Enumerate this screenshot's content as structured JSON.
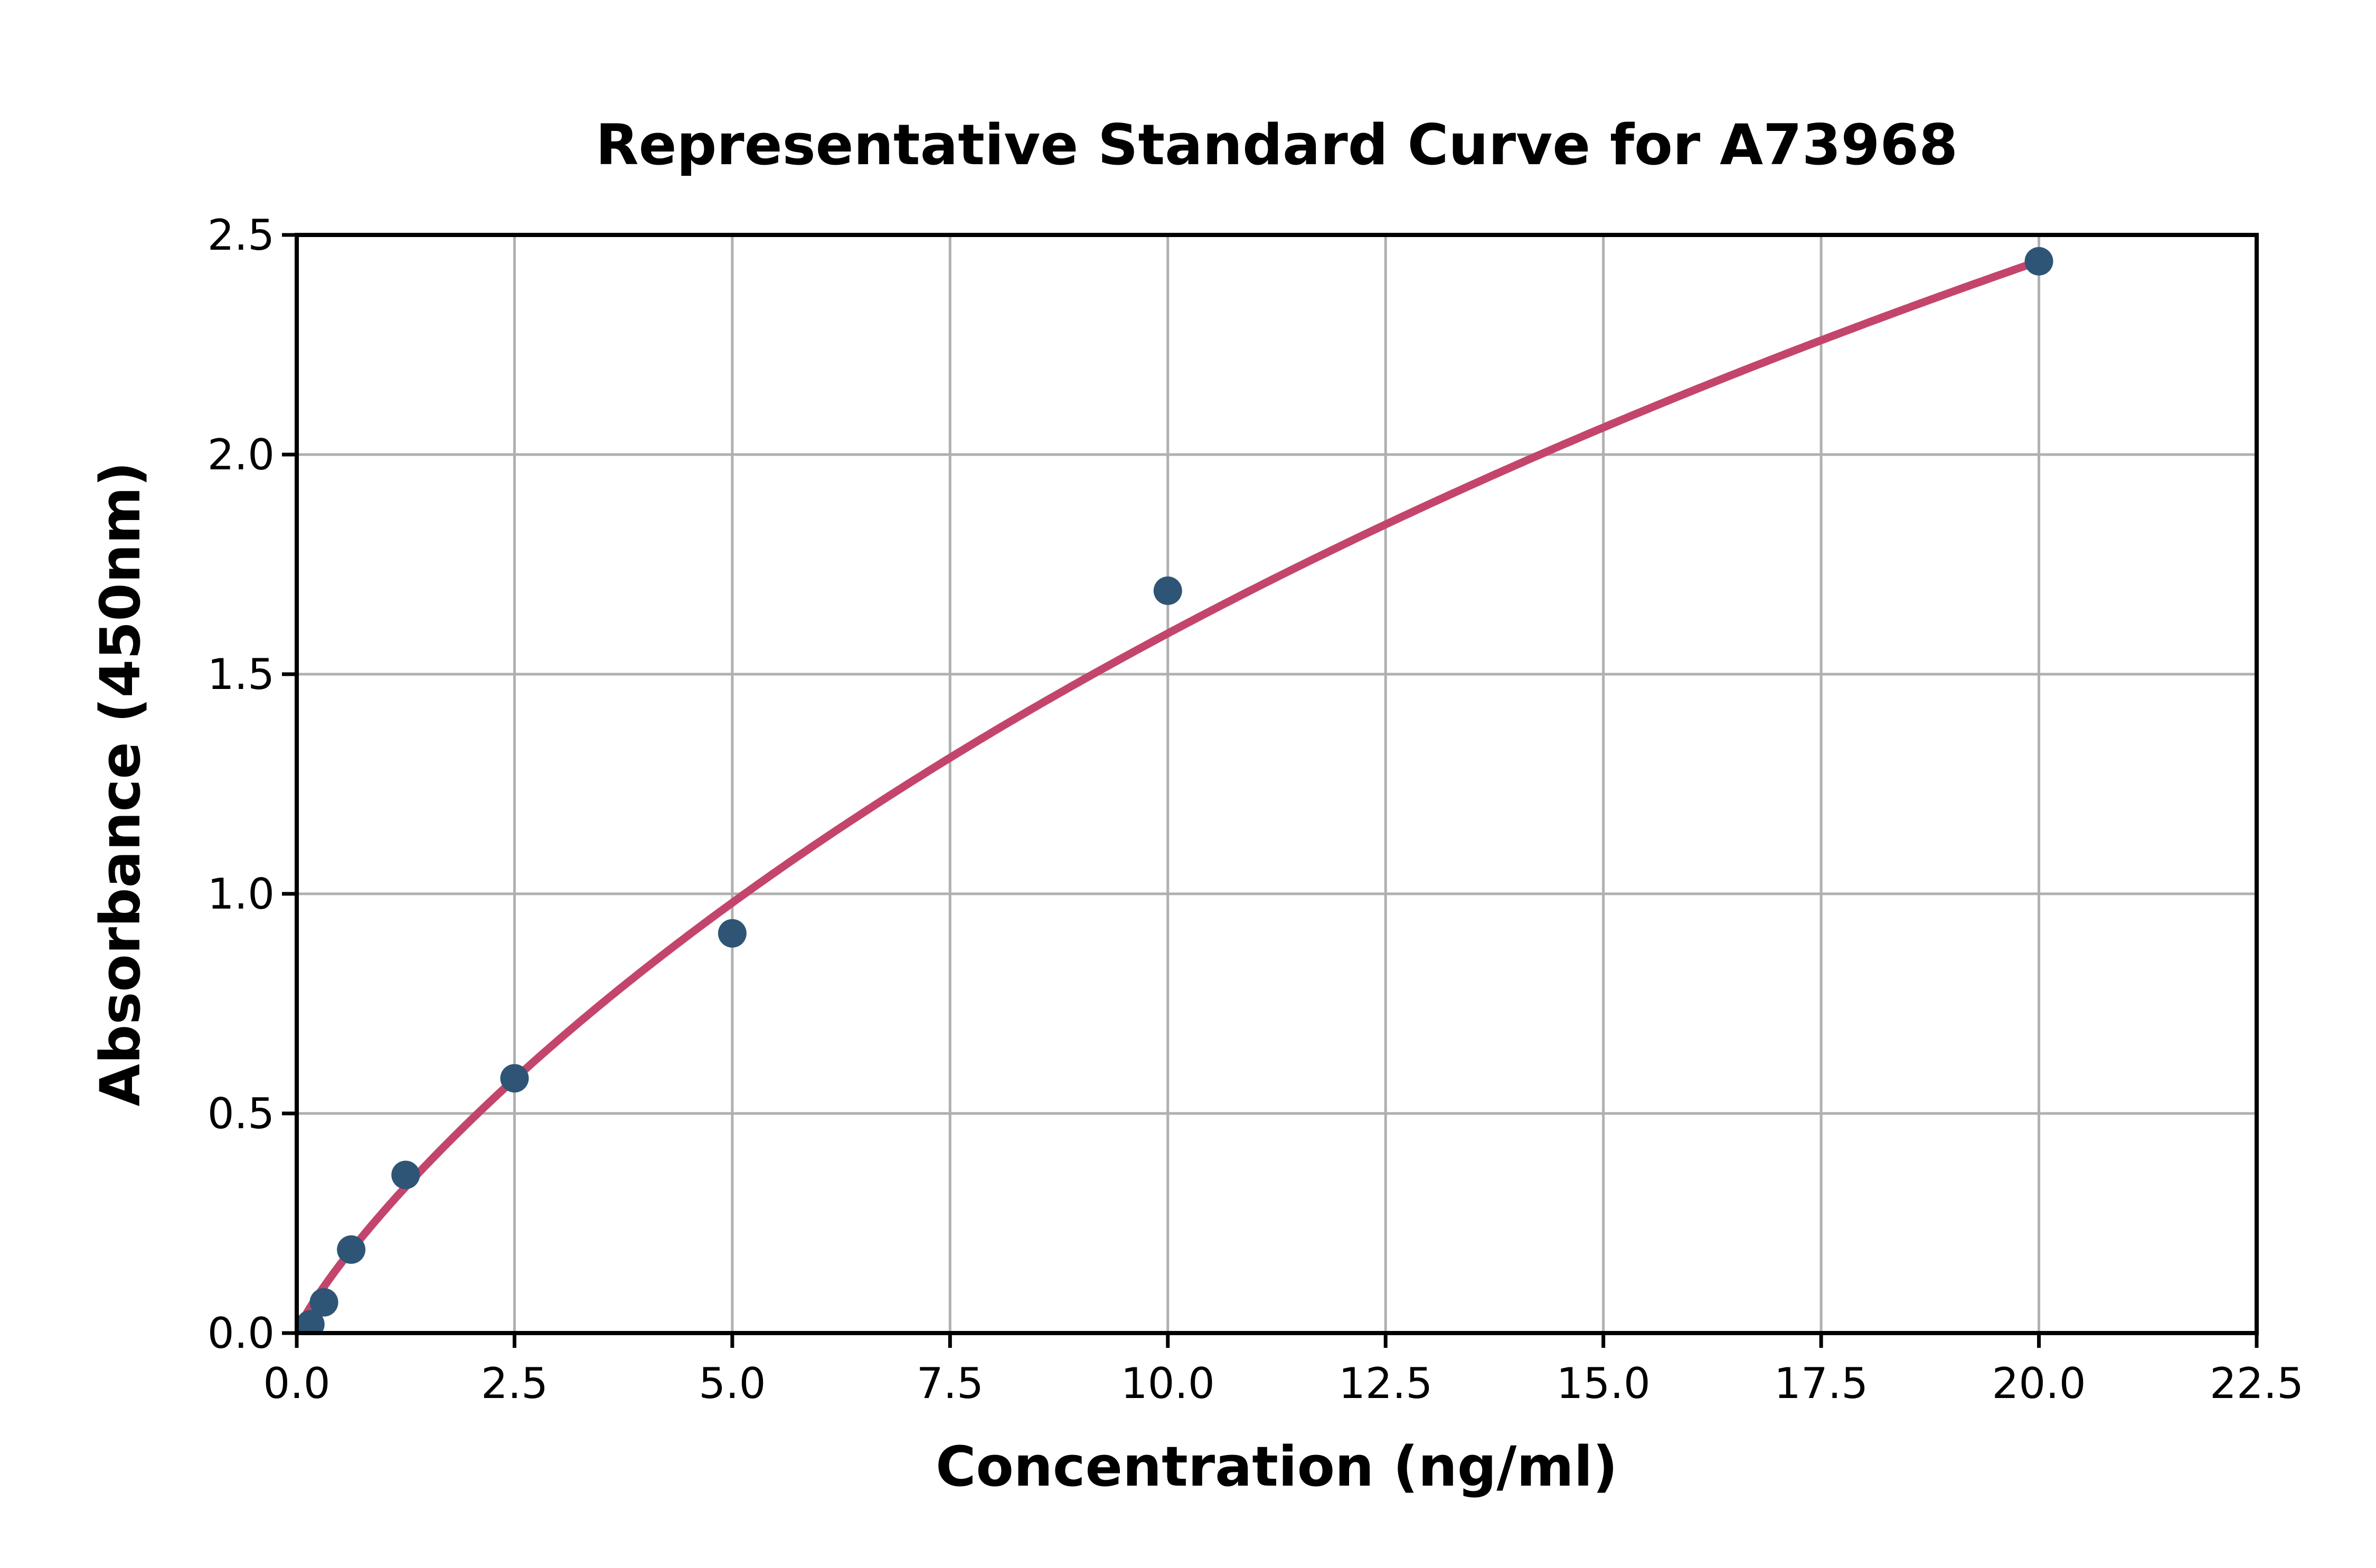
{
  "page": {
    "background": "#ffffff"
  },
  "chart_data": {
    "type": "scatter",
    "title": "Representative Standard Curve for A73968",
    "xlabel": "Concentration (ng/ml)",
    "ylabel": "Absorbance (450nm)",
    "xlim": [
      0,
      22.5
    ],
    "ylim": [
      0,
      2.5
    ],
    "x_ticks": [
      0,
      2.5,
      5,
      7.5,
      10,
      12.5,
      15,
      17.5,
      20,
      22.5
    ],
    "x_tick_labels": [
      "0.0",
      "2.5",
      "5.0",
      "7.5",
      "10.0",
      "12.5",
      "15.0",
      "17.5",
      "20.0",
      "22.5"
    ],
    "y_ticks": [
      0,
      0.5,
      1,
      1.5,
      2,
      2.5
    ],
    "y_tick_labels": [
      "0.0",
      "0.5",
      "1.0",
      "1.5",
      "2.0",
      "2.5"
    ],
    "grid": true,
    "legend_position": "none",
    "series": [
      {
        "name": "standard-points",
        "type": "scatter",
        "marker": "circle",
        "points": [
          {
            "x": 0.156,
            "y": 0.02
          },
          {
            "x": 0.3125,
            "y": 0.07
          },
          {
            "x": 0.625,
            "y": 0.19
          },
          {
            "x": 1.25,
            "y": 0.36
          },
          {
            "x": 2.5,
            "y": 0.58
          },
          {
            "x": 5,
            "y": 0.91
          },
          {
            "x": 10,
            "y": 1.69
          },
          {
            "x": 20,
            "y": 2.44
          }
        ]
      },
      {
        "name": "fit-curve",
        "type": "line",
        "fit": {
          "model": "hill",
          "equation": "y = d * x^b / (k + x^b)",
          "d": 7.24,
          "k": 25.1,
          "b": 0.85,
          "x_start": 0,
          "x_end": 20
        }
      }
    ],
    "colors": {
      "marker": "#2e5576",
      "line": "#c4456c",
      "grid": "#b0b0b0",
      "axis": "#000000",
      "text": "#000000"
    }
  }
}
